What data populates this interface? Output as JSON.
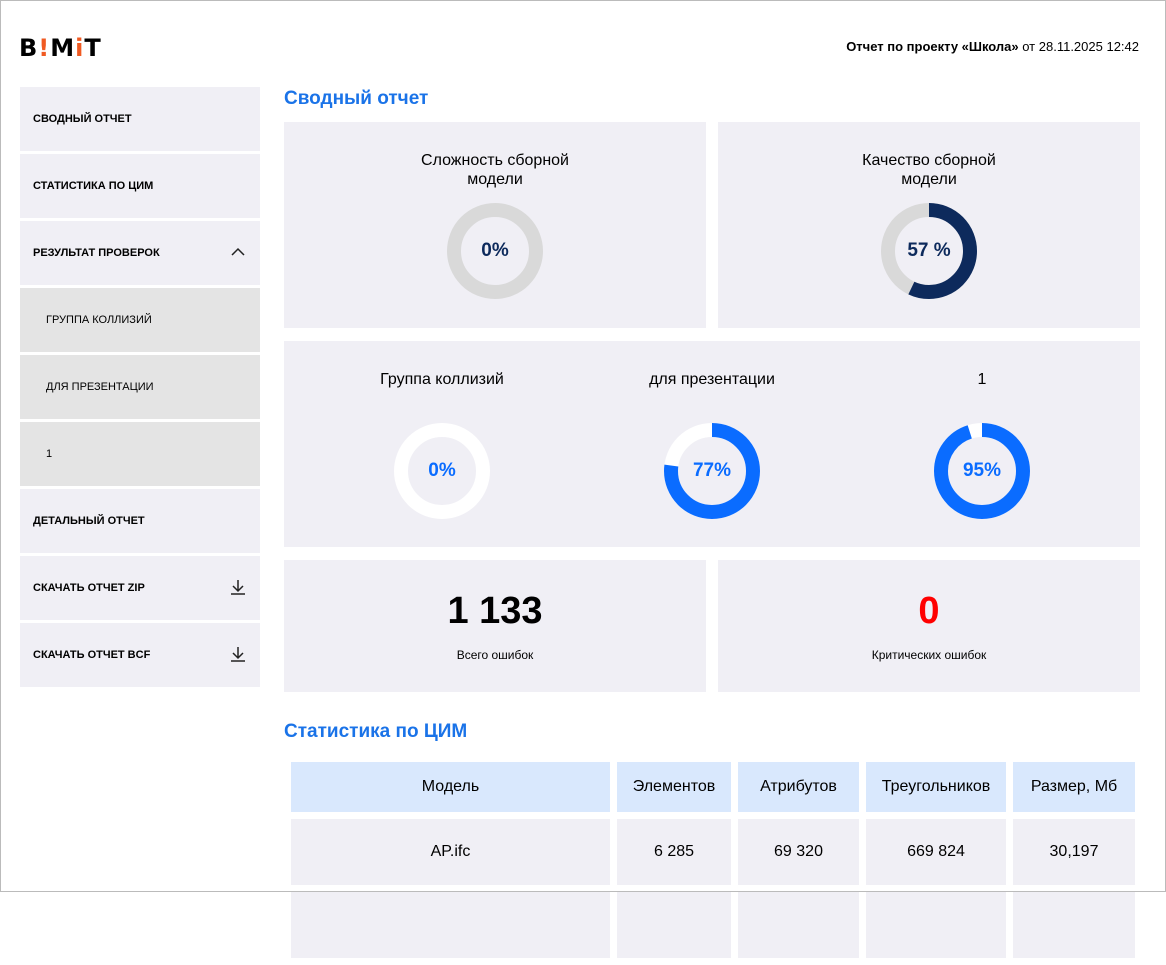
{
  "header": {
    "logo": "B!MiT",
    "title_bold": "Отчет по проекту «Школа»",
    "title_rest": " от 28.11.2025 12:42"
  },
  "sidebar": {
    "items": [
      {
        "label": "Сводный отчет"
      },
      {
        "label": "Статистика по ЦИМ"
      },
      {
        "label": "Результат проверок",
        "icon": "chevron-up-icon"
      },
      {
        "label": "Группа коллизий",
        "sub": true
      },
      {
        "label": "для презентации",
        "sub": true
      },
      {
        "label": "1",
        "sub": true
      },
      {
        "label": "Детальный отчет"
      },
      {
        "label": "Скачать отчет ZIP",
        "icon": "download-icon"
      },
      {
        "label": "Скачать отчет BCF",
        "icon": "download-icon"
      }
    ]
  },
  "summary": {
    "title": "Сводный отчет",
    "complexity": {
      "title": "Сложность сборной модели",
      "value": 0,
      "label": "0%",
      "color": "#0d2a5c",
      "track": "#d9d9d9"
    },
    "quality": {
      "title": "Качество сборной модели",
      "value": 57,
      "label": "57 %",
      "color": "#0d2a5c",
      "track": "#d9d9d9"
    },
    "groups": [
      {
        "title": "Группа коллизий",
        "value": 0,
        "label": "0%"
      },
      {
        "title": "для презентации",
        "value": 77,
        "label": "77%"
      },
      {
        "title": "1",
        "value": 95,
        "label": "95%"
      }
    ],
    "group_color": "#0a6cff",
    "group_track": "#ffffff",
    "total_errors": {
      "value": "1 133",
      "label": "Всего ошибок"
    },
    "critical_errors": {
      "value": "0",
      "label": "Критических ошибок",
      "color": "#ff0000"
    }
  },
  "stats": {
    "title": "Статистика по ЦИМ",
    "columns": [
      "Модель",
      "Элементов",
      "Атрибутов",
      "Треугольников",
      "Размер, Мб"
    ],
    "rows": [
      [
        "AP.ifc",
        "6 285",
        "69 320",
        "669 824",
        "30,197"
      ],
      [
        "",
        "",
        "",
        "",
        ""
      ]
    ]
  }
}
